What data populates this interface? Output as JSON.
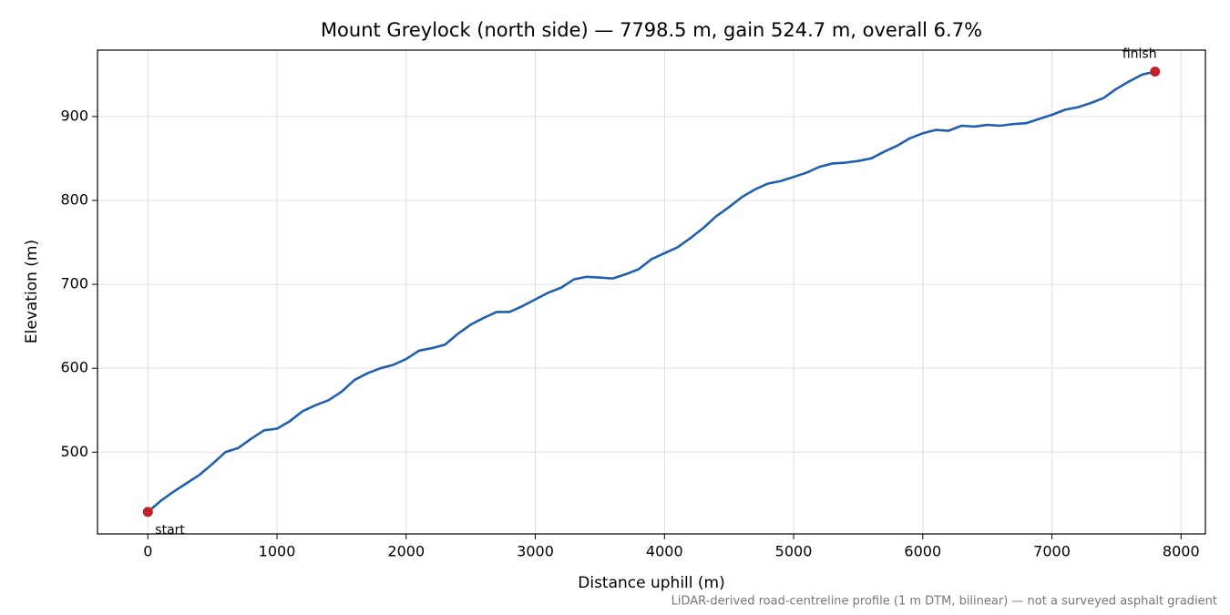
{
  "chart_data": {
    "type": "line",
    "title": "Mount Greylock (north side) — 7798.5 m, gain 524.7 m, overall 6.7%",
    "xlabel": "Distance uphill (m)",
    "ylabel": "Elevation (m)",
    "note": "LiDAR-derived road-centreline profile (1 m DTM, bilinear) — not a surveyed asphalt gradient",
    "x": [
      0,
      100,
      200,
      300,
      400,
      500,
      600,
      700,
      800,
      900,
      1000,
      1100,
      1200,
      1300,
      1400,
      1500,
      1600,
      1700,
      1800,
      1900,
      2000,
      2100,
      2200,
      2300,
      2400,
      2500,
      2600,
      2700,
      2800,
      2900,
      3000,
      3100,
      3200,
      3300,
      3400,
      3500,
      3600,
      3700,
      3800,
      3900,
      4000,
      4100,
      4200,
      4300,
      4400,
      4500,
      4600,
      4700,
      4800,
      4900,
      5000,
      5100,
      5200,
      5300,
      5400,
      5500,
      5600,
      5700,
      5800,
      5900,
      6000,
      6100,
      6200,
      6300,
      6400,
      6500,
      6600,
      6700,
      6800,
      6900,
      7000,
      7100,
      7200,
      7300,
      7400,
      7500,
      7600,
      7700,
      7798.5
    ],
    "series": [
      {
        "color": "#1f5fb0",
        "values": [
          428.8,
          442,
          453,
          463,
          473,
          486,
          500,
          505,
          516,
          526,
          528,
          537,
          549,
          556,
          562,
          572,
          586,
          594,
          600,
          604,
          611,
          621,
          624,
          628,
          641,
          652,
          660,
          667,
          667,
          674,
          682,
          690,
          696,
          706,
          709,
          708,
          707,
          712,
          718,
          730,
          737,
          744,
          755,
          767,
          781,
          792,
          804,
          813,
          820,
          823,
          828,
          833,
          840,
          844,
          845,
          847,
          850,
          858,
          865,
          874,
          880,
          884,
          883,
          889,
          888,
          890,
          889,
          891,
          892,
          897,
          902,
          908,
          911,
          916,
          922,
          933,
          942,
          950,
          953.5
        ]
      }
    ],
    "annotations": [
      {
        "text": "start",
        "x": 0,
        "y": 428.8,
        "color": "#c0202a"
      },
      {
        "text": "finish",
        "x": 7798.5,
        "y": 953.5,
        "color": "#c0202a"
      }
    ],
    "xlim": [
      -390,
      8188.4
    ],
    "ylim": [
      402.6,
      979.1
    ],
    "xticks": [
      0,
      1000,
      2000,
      3000,
      4000,
      5000,
      6000,
      7000,
      8000
    ],
    "yticks": [
      500,
      600,
      700,
      800,
      900
    ],
    "grid": true
  }
}
